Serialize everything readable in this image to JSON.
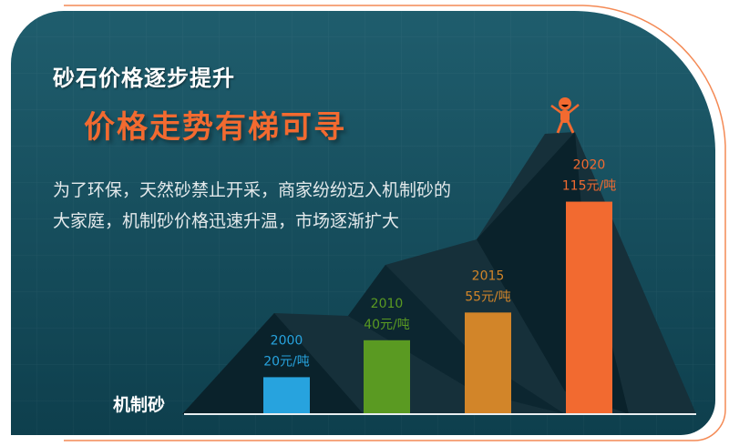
{
  "header": {
    "title": "砂石价格逐步提升",
    "subtitle": "价格走势有梯可寻"
  },
  "description": "为了环保，天然砂禁止开采，商家纷纷迈入机制砂的大家庭，机制砂价格迅速升温，市场逐渐扩大",
  "chart_data": {
    "type": "bar",
    "category_label": "机制砂",
    "categories": [
      "2000",
      "2010",
      "2015",
      "2020"
    ],
    "values": [
      20,
      40,
      55,
      115
    ],
    "unit": "元/吨",
    "data_labels": [
      "20元/吨",
      "40元/吨",
      "55元/吨",
      "115元/吨"
    ],
    "colors": [
      "#27a3de",
      "#5a9a22",
      "#d28529",
      "#f26a30"
    ],
    "grid": false,
    "legend": "none"
  },
  "colors": {
    "background_top": "#1f5d6d",
    "background_bottom": "#0e3f4d",
    "accent": "#f26a30",
    "mountain": "#16303a",
    "mountain_shadow": "#0a222b"
  },
  "icons": {
    "mascot": "cheering-person-icon"
  }
}
